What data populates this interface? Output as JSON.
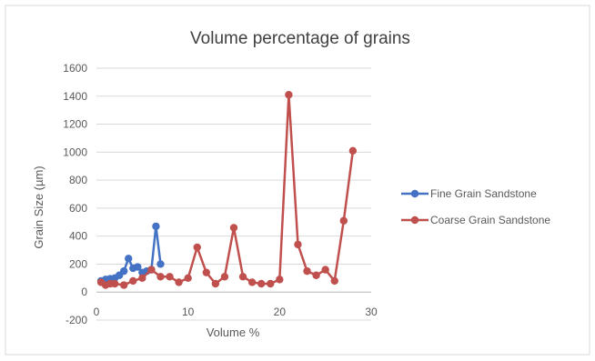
{
  "chart_data": {
    "type": "line",
    "title": "Volume percentage of grains",
    "xlabel": "Volume %",
    "ylabel": "Grain Size (µm)",
    "xlim": [
      0,
      30
    ],
    "ylim": [
      -200,
      1600
    ],
    "x_ticks": [
      "0",
      "10",
      "20",
      "30"
    ],
    "y_ticks": [
      "-200",
      "0",
      "200",
      "400",
      "600",
      "800",
      "1000",
      "1200",
      "1400",
      "1600"
    ],
    "grid": "horizontal",
    "legend_position": "right",
    "series": [
      {
        "name": "Fine Grain Sandstone",
        "color": "#4472C4",
        "points": [
          [
            0.5,
            80
          ],
          [
            1.0,
            90
          ],
          [
            1.5,
            95
          ],
          [
            2.0,
            100
          ],
          [
            2.5,
            120
          ],
          [
            3.0,
            150
          ],
          [
            3.5,
            240
          ],
          [
            4.0,
            170
          ],
          [
            4.5,
            180
          ],
          [
            5.0,
            140
          ],
          [
            5.5,
            150
          ],
          [
            6.0,
            160
          ],
          [
            6.5,
            470
          ],
          [
            7.0,
            200
          ]
        ]
      },
      {
        "name": "Coarse Grain Sandstone",
        "color": "#C0504D",
        "points": [
          [
            0.5,
            70
          ],
          [
            1.0,
            50
          ],
          [
            1.5,
            60
          ],
          [
            2.0,
            60
          ],
          [
            3.0,
            50
          ],
          [
            4.0,
            80
          ],
          [
            5.0,
            100
          ],
          [
            6.0,
            160
          ],
          [
            7.0,
            110
          ],
          [
            8.0,
            110
          ],
          [
            9.0,
            70
          ],
          [
            10.0,
            100
          ],
          [
            11.0,
            320
          ],
          [
            12.0,
            140
          ],
          [
            13.0,
            60
          ],
          [
            14.0,
            110
          ],
          [
            15.0,
            460
          ],
          [
            16.0,
            110
          ],
          [
            17.0,
            70
          ],
          [
            18.0,
            60
          ],
          [
            19.0,
            60
          ],
          [
            20.0,
            90
          ],
          [
            21.0,
            1410
          ],
          [
            22.0,
            340
          ],
          [
            23.0,
            150
          ],
          [
            24.0,
            120
          ],
          [
            25.0,
            160
          ],
          [
            26.0,
            80
          ],
          [
            27.0,
            510
          ],
          [
            28.0,
            1010
          ]
        ]
      }
    ]
  }
}
